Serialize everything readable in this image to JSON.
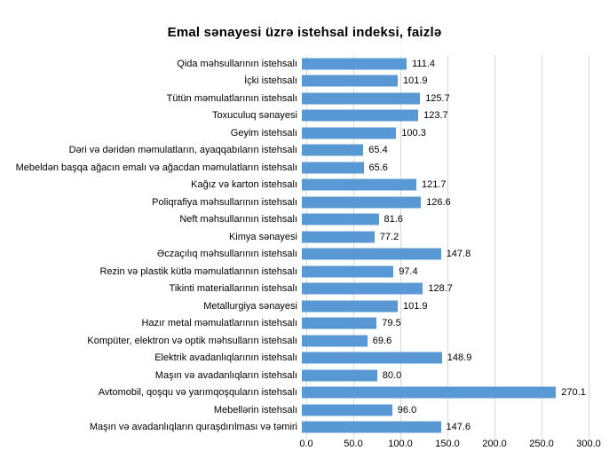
{
  "chart_data": {
    "type": "bar",
    "orientation": "horizontal",
    "title": "Emal sənayesi üzrə istehsal indeksi, faizlə",
    "categories": [
      "Qida məhsullarının istehsalı",
      "İçki istehsalı",
      "Tütün məmulatlarının istehsalı",
      "Toxuculuq sənayesi",
      "Geyim istehsalı",
      "Dəri və dəridən məmulatların, ayaqqabıların istehsalı",
      "Mebeldən başqa ağacın emalı və ağacdan məmulatların istehsalı",
      "Kağız və karton istehsalı",
      "Poliqrafiya məhsullarının istehsalı",
      "Neft məhsullarının istehsalı",
      "Kimya sənayesi",
      "Əczaçılıq məhsullarının istehsalı",
      "Rezin və plastik kütlə məmulatlarının istehsalı",
      "Tikinti materiallarının istehsalı",
      "Metallurgiya sənayesi",
      "Hazır metal məmulatlarının istehsalı",
      "Kompüter, elektron və optik məhsulların istehsalı",
      "Elektrik avadanlıqlarının istehsalı",
      "Maşın və avadanlıqların istehsalı",
      "Avtomobil, qoşqu və yarımqoşquların istehsalı",
      "Mebellərin istehsalı",
      "Maşın və avadanlıqların quraşdırılması və təmiri"
    ],
    "values": [
      111.4,
      101.9,
      125.7,
      123.7,
      100.3,
      65.4,
      65.6,
      121.7,
      126.6,
      81.6,
      77.2,
      147.8,
      97.4,
      128.7,
      101.9,
      79.5,
      69.6,
      148.9,
      80.0,
      270.1,
      96.0,
      147.6
    ],
    "value_labels": [
      "111.4",
      "101.9",
      "125.7",
      "123.7",
      "100.3",
      "65.4",
      "65.6",
      "121.7",
      "126.6",
      "81.6",
      "77.2",
      "147.8",
      "97.4",
      "128.7",
      "101.9",
      "79.5",
      "69.6",
      "148.9",
      "80.0",
      "270.1",
      "96.0",
      "147.6"
    ],
    "xlabel": "",
    "ylabel": "",
    "xlim": [
      0,
      300
    ],
    "x_ticks": [
      "0.0",
      "50.0",
      "100.0",
      "150.0",
      "200.0",
      "250.0",
      "300.0"
    ],
    "grid": true,
    "legend": "none",
    "bar_color": "#5899D5",
    "gridline_color": "#D9D9D9",
    "text_color": "#000000"
  }
}
